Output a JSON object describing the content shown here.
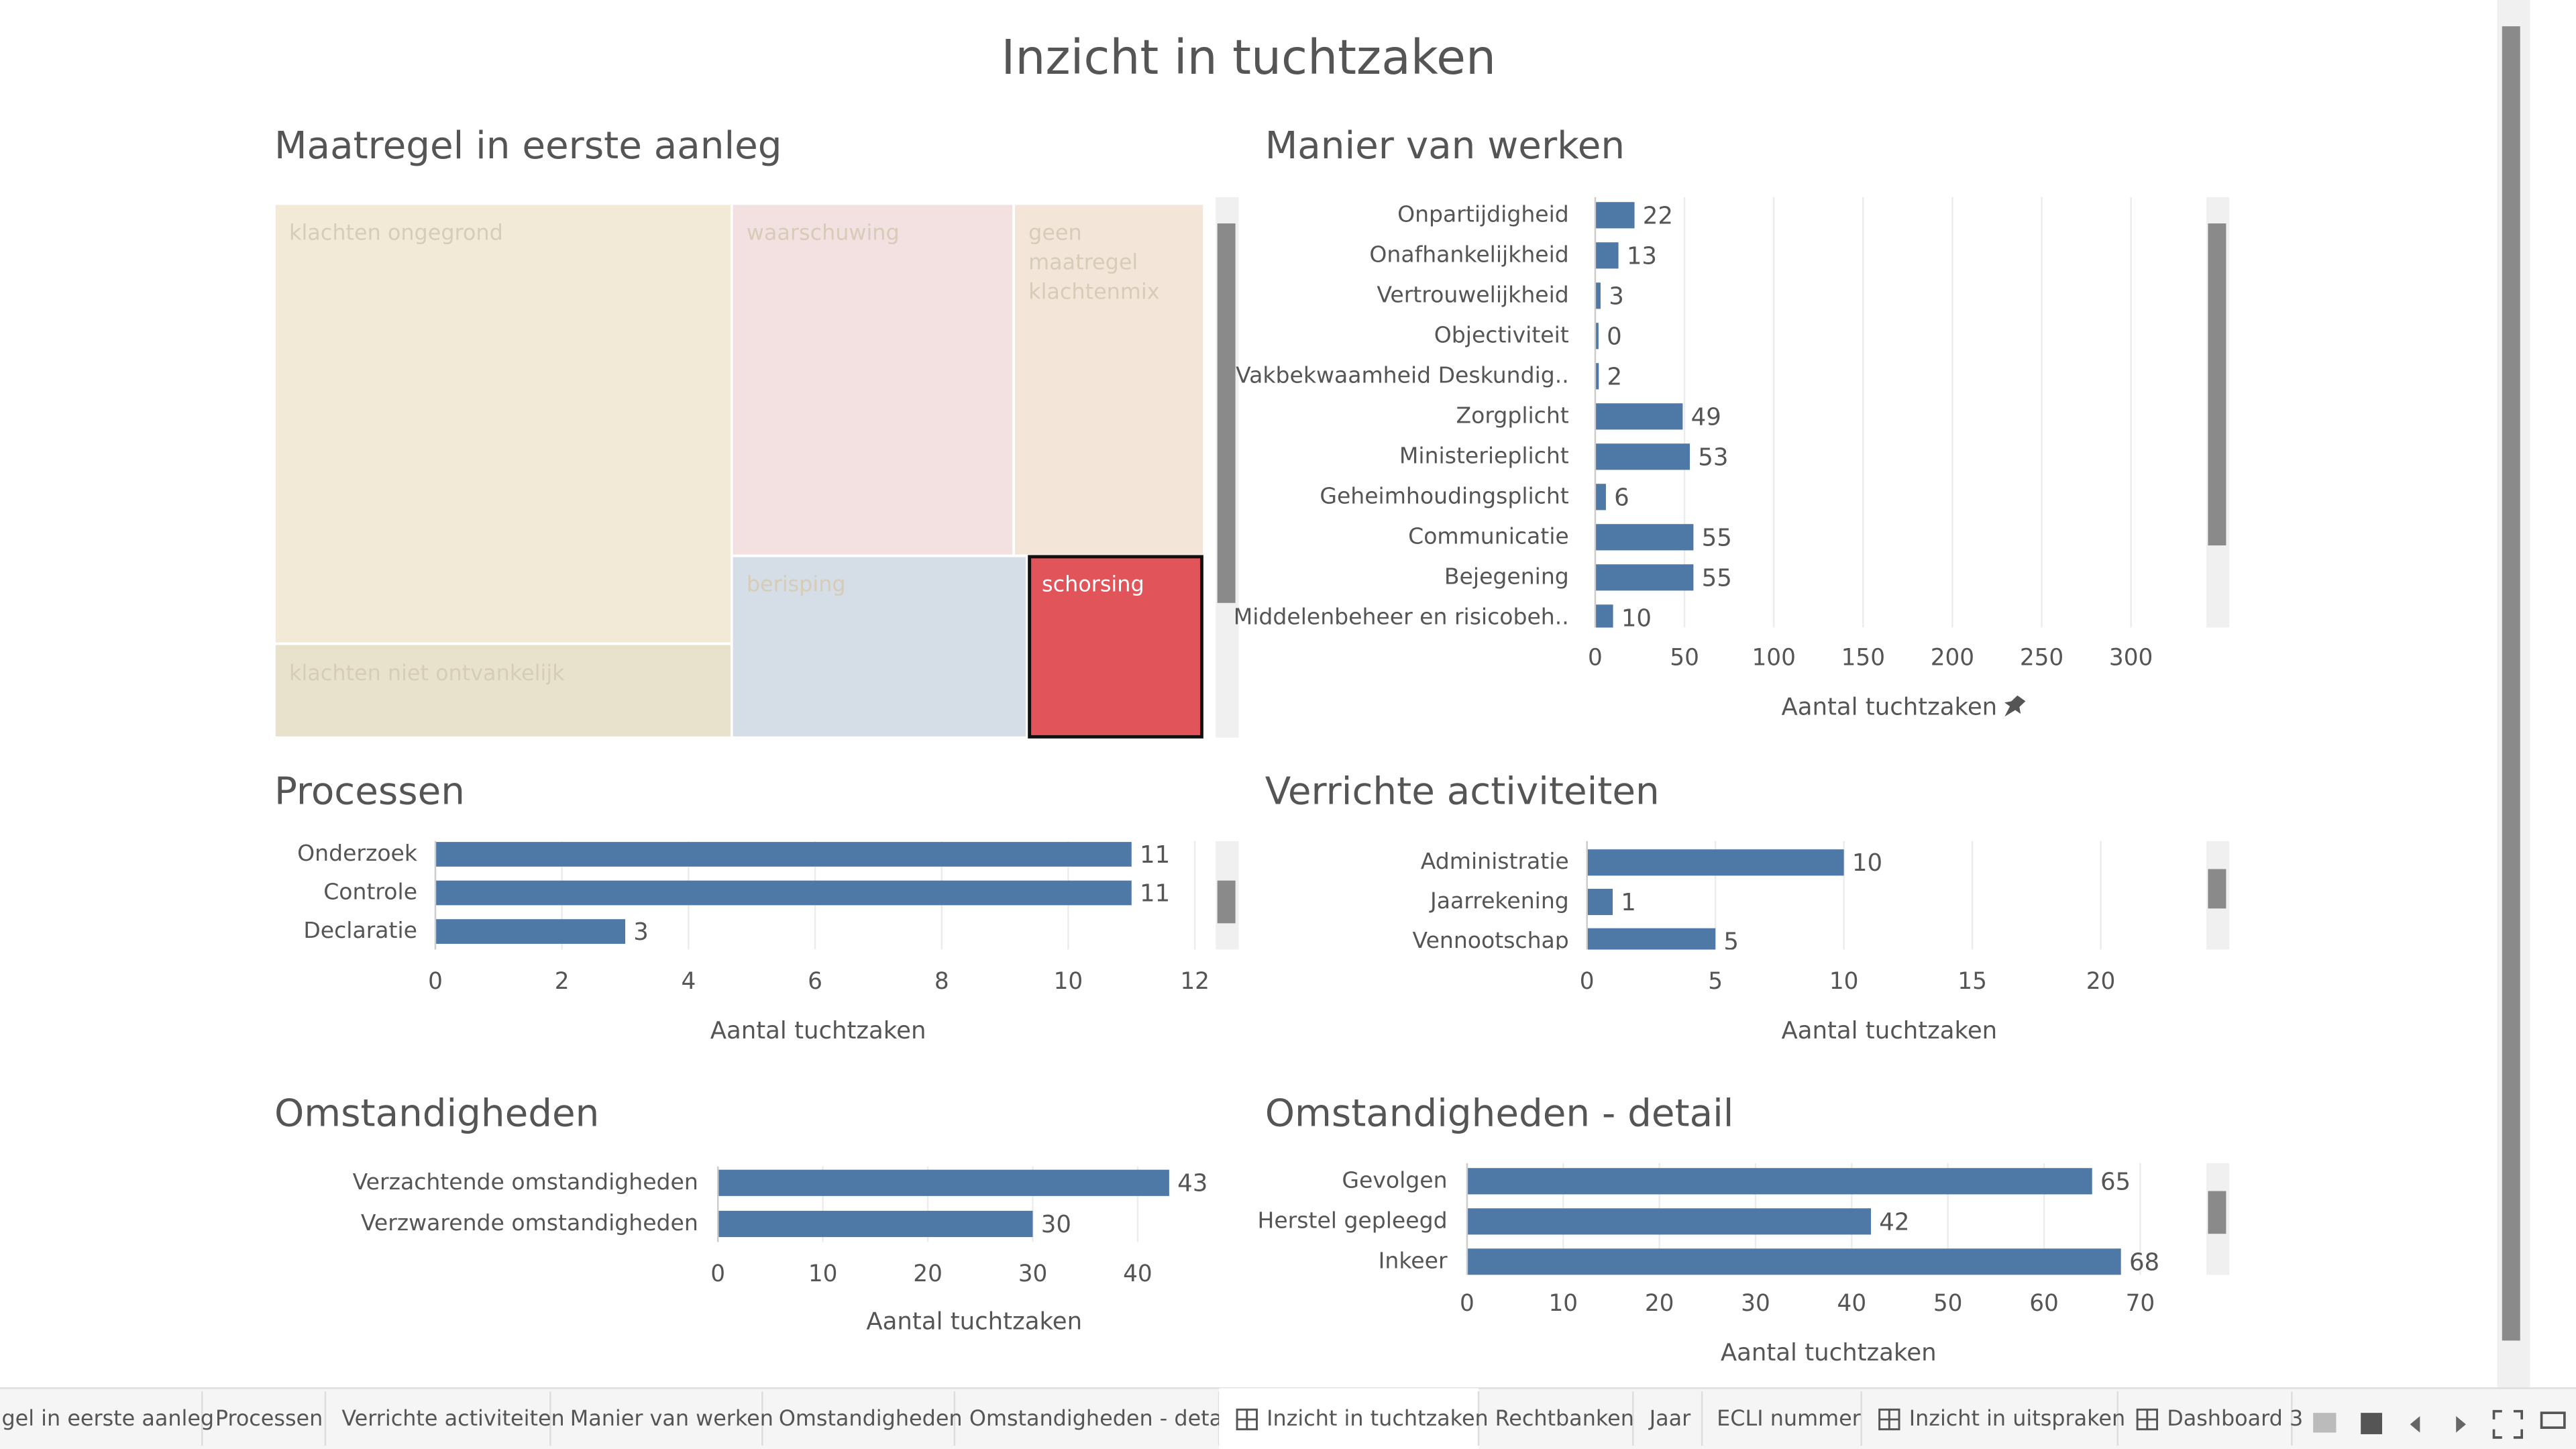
{
  "dashboard_title": "Inzicht in tuchtzaken",
  "chart_data": [
    {
      "type": "treemap",
      "title": "Maatregel in eerste aanleg",
      "categories": [
        "klachten ongegrond",
        "klachten niet ontvankelijk",
        "waarschuwing",
        "geen maatregel klachtenmix",
        "berisping",
        "schorsing"
      ],
      "values": [
        75,
        16,
        37,
        25,
        20,
        12
      ],
      "colors": [
        "#f2ead6",
        "#e8e2cc",
        "#f3e0e0",
        "#f3e6d9",
        "#d5dde6",
        "#e0545a"
      ]
    },
    {
      "type": "hbar",
      "title": "Manier van werken",
      "x_label": "Aantal tuchtzaken",
      "categories": [
        "Onpartijdigheid",
        "Onafhankelijkheid",
        "Vertrouwelijkheid",
        "Objectiviteit",
        "Vakbekwaamheid Deskundig..",
        "Zorgplicht",
        "Ministerieplicht",
        "Geheimhoudingsplicht",
        "Communicatie",
        "Bejegening",
        "Middelenbeheer en risicobeh.."
      ],
      "values": [
        22,
        13,
        3,
        0,
        2,
        49,
        53,
        6,
        55,
        55,
        10
      ],
      "color": "#4e79a7",
      "xlim": [
        0,
        333
      ],
      "xticks": [
        0,
        50,
        100,
        150,
        200,
        250,
        300
      ],
      "grid": true
    },
    {
      "type": "hbar",
      "title": "Processen",
      "x_label": "Aantal tuchtzaken",
      "categories": [
        "Onderzoek",
        "Controle",
        "Declaratie"
      ],
      "values": [
        11,
        11,
        3
      ],
      "color": "#4e79a7",
      "xlim": [
        0,
        12.2
      ],
      "xticks": [
        0,
        2,
        4,
        6,
        8,
        10,
        12
      ],
      "grid": true
    },
    {
      "type": "hbar",
      "title": "Verrichte activiteiten",
      "x_label": "Aantal tuchtzaken",
      "categories": [
        "Administratie",
        "Jaarrekening",
        "Vennootschap"
      ],
      "values": [
        10,
        1,
        5
      ],
      "color": "#4e79a7",
      "xlim": [
        0,
        23.6
      ],
      "xticks": [
        0,
        5,
        10,
        15,
        20
      ],
      "grid": true
    },
    {
      "type": "hbar",
      "title": "Omstandigheden",
      "x_label": "Aantal tuchtzaken",
      "categories": [
        "Verzachtende omstandigheden",
        "Verzwarende omstandigheden"
      ],
      "values": [
        43,
        30
      ],
      "color": "#4e79a7",
      "xlim": [
        0,
        49
      ],
      "xticks": [
        0,
        10,
        20,
        30,
        40
      ],
      "grid": true
    },
    {
      "type": "hbar",
      "title": "Omstandigheden - detail",
      "x_label": "Aantal tuchtzaken",
      "categories": [
        "Gevolgen",
        "Herstel gepleegd",
        "Inkeer"
      ],
      "values": [
        65,
        42,
        68
      ],
      "color": "#4e79a7",
      "xlim": [
        0,
        75
      ],
      "xticks": [
        0,
        10,
        20,
        30,
        40,
        50,
        60,
        70
      ],
      "grid": true
    }
  ],
  "tabs": [
    "gel in eerste aanleg",
    "Processen",
    "Verrichte activiteiten",
    "Manier van werken",
    "Omstandigheden",
    "Omstandigheden - detail",
    "Inzicht in tuchtzaken",
    "Rechtbanken",
    "Jaar",
    "ECLI nummer",
    "Inzicht in uitspraken",
    "Dashboard 3"
  ],
  "active_tab": 6
}
